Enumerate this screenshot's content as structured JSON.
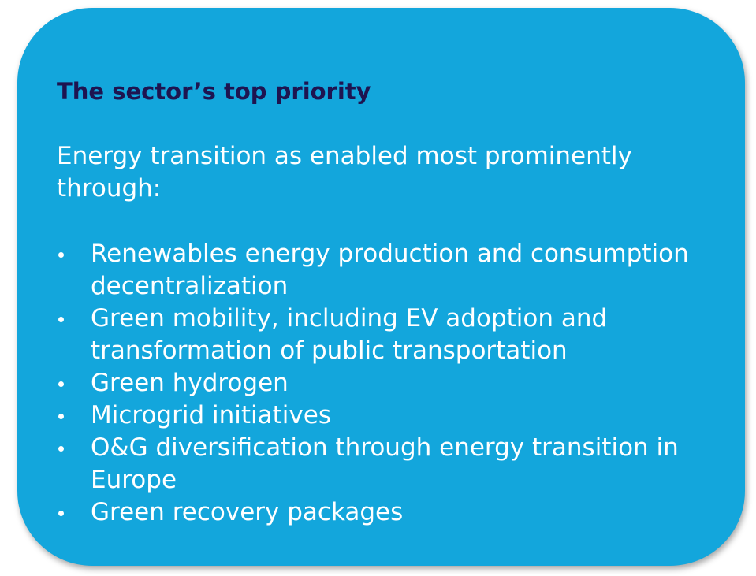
{
  "title": "The sector’s top priority",
  "intro": "Energy transition as enabled most prominently through:",
  "bullets": [
    "Renewables energy production and consumption decentralization",
    "Green mobility, including EV adoption and transformation of public transportation",
    "Green hydrogen",
    "Microgrid initiatives",
    "O&G diversification through energy transition in Europe",
    "Green recovery packages"
  ]
}
